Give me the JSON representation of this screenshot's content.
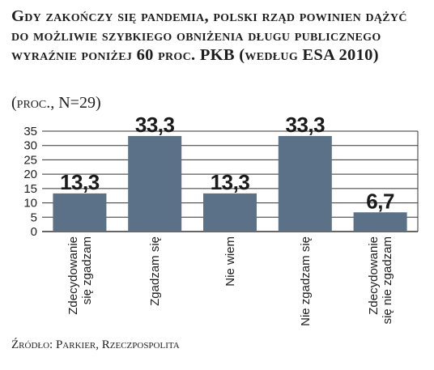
{
  "title": "Gdy zakończy się pandemia, polski rząd powinien dążyć do możliwie szybkiego obniżenia długu publicznego wyraźnie poniżej 60 proc. PKB (według ESA 2010)",
  "subtitle": "(proc., N=29)",
  "source": "Źródło: Parkier, Rzeczpospolita",
  "colors": {
    "bar": "#5b7188",
    "grid": "#333333",
    "text": "#1e1e1e"
  },
  "chart_data": {
    "type": "bar",
    "categories": [
      "Zdecydowanie się zgadzam",
      "Zgadzam się",
      "Nie wiem",
      "Nie zgadzam się",
      "Zdecydowanie się nie zgadzam"
    ],
    "category_lines": [
      [
        "Zdecydowanie",
        "się zgadzam"
      ],
      [
        "Zgadzam się"
      ],
      [
        "Nie wiem"
      ],
      [
        "Nie zgadzam się"
      ],
      [
        "Zdecydowanie",
        "się nie zgadzam"
      ]
    ],
    "values": [
      13.3,
      33.3,
      13.3,
      33.3,
      6.7
    ],
    "value_labels": [
      "13,3",
      "33,3",
      "13,3",
      "33,3",
      "6,7"
    ],
    "yticks": [
      0,
      5,
      10,
      15,
      20,
      25,
      30,
      35
    ],
    "ylim": [
      0,
      35
    ],
    "grid": true
  }
}
